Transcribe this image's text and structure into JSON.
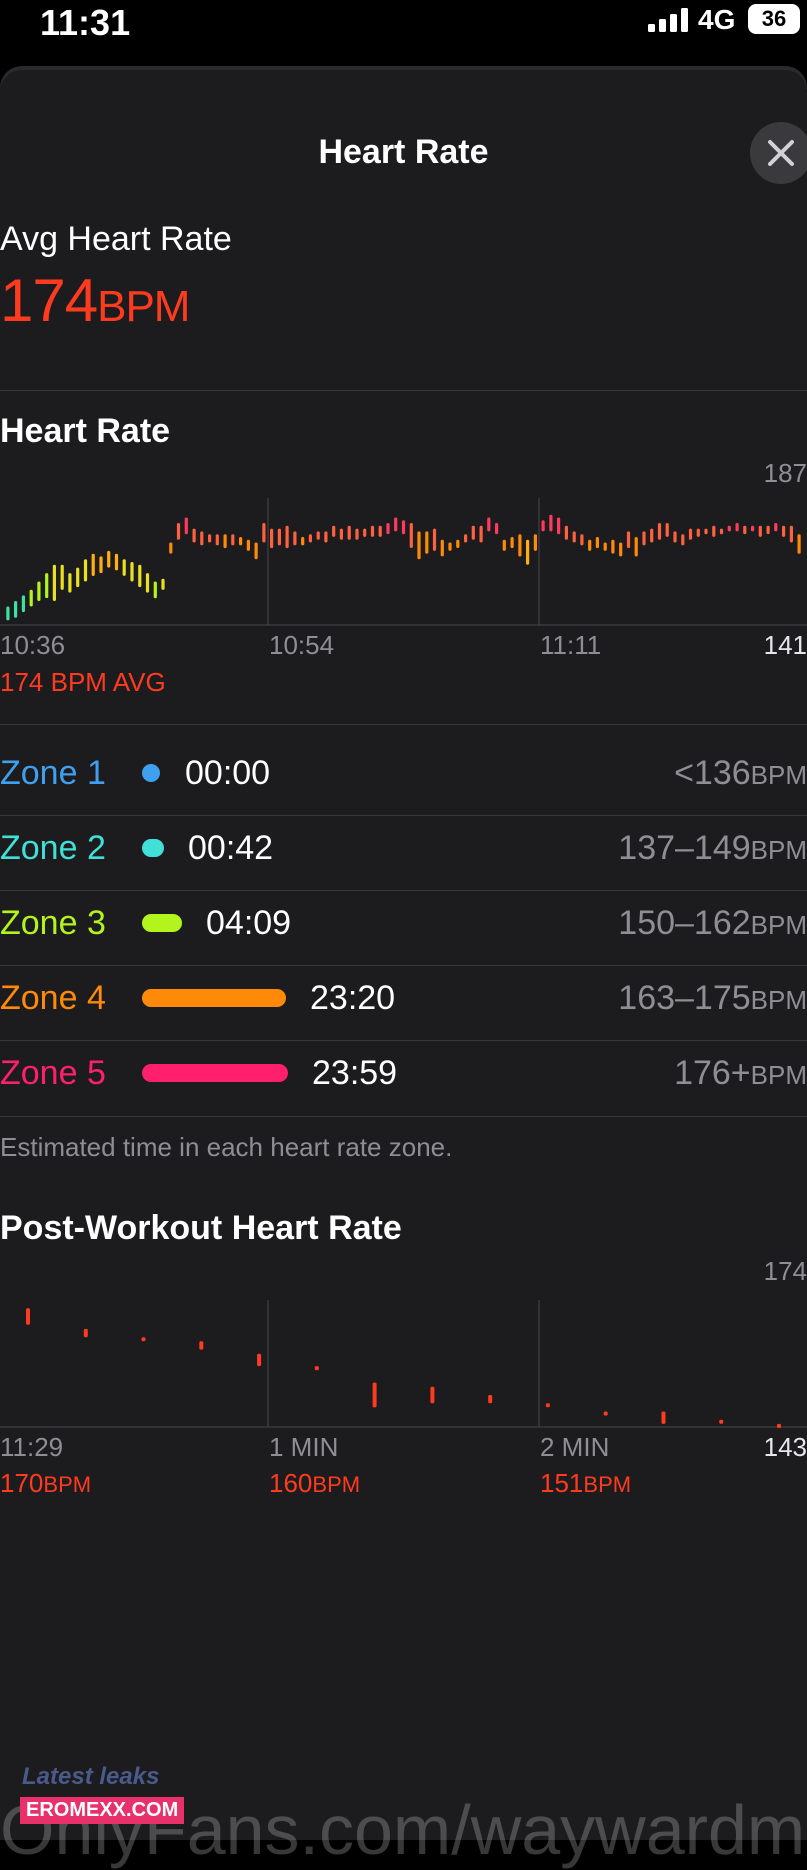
{
  "status_bar": {
    "time": "11:31",
    "network": "4G",
    "battery": "36"
  },
  "sheet": {
    "title": "Heart Rate"
  },
  "summary": {
    "label": "Avg Heart Rate",
    "value": "174",
    "unit": "BPM"
  },
  "heart_rate_chart": {
    "title": "Heart Rate",
    "y_max_label": "187",
    "y_min_label": "141",
    "x_labels": [
      "10:36",
      "10:54",
      "11:11"
    ],
    "avg_caption": "174 BPM AVG"
  },
  "zones": [
    {
      "name": "Zone 1",
      "time": "00:00",
      "range": "<136",
      "unit": "BPM",
      "color": "#3fa0f0"
    },
    {
      "name": "Zone 2",
      "time": "00:42",
      "range": "137–149",
      "unit": "BPM",
      "color": "#40e0d8"
    },
    {
      "name": "Zone 3",
      "time": "04:09",
      "range": "150–162",
      "unit": "BPM",
      "color": "#b2f41c"
    },
    {
      "name": "Zone 4",
      "time": "23:20",
      "range": "163–175",
      "unit": "BPM",
      "color": "#ff8a0a"
    },
    {
      "name": "Zone 5",
      "time": "23:59",
      "range": "176+",
      "unit": "BPM",
      "color": "#ff1f6d"
    }
  ],
  "zones_footnote": "Estimated time in each heart rate zone.",
  "post_workout": {
    "title": "Post-Workout Heart Rate",
    "y_max_label": "174",
    "y_min_label": "143",
    "marks": [
      {
        "time": "11:29",
        "value": "170",
        "unit": "BPM"
      },
      {
        "time": "1 MIN",
        "value": "160",
        "unit": "BPM"
      },
      {
        "time": "2 MIN",
        "value": "151",
        "unit": "BPM"
      }
    ]
  },
  "watermark": {
    "site_tag": "Latest leaks",
    "site_badge": "EROMEXX.COM",
    "overlay": "OnlyFans.com/waywardm"
  },
  "chart_data": [
    {
      "type": "bar",
      "title": "Heart Rate",
      "xlabel": "",
      "ylabel": "",
      "ylim": [
        141,
        187
      ],
      "x_ticks": [
        "10:36",
        "10:54",
        "11:11"
      ],
      "note": "",
      "series": [
        {
          "ranges": [
            [
              143,
              148
            ],
            [
              144,
              150
            ],
            [
              146,
              152
            ],
            [
              148,
              154
            ],
            [
              150,
              157
            ],
            [
              151,
              160
            ],
            [
              150,
              163
            ],
            [
              154,
              163
            ],
            [
              153,
              160
            ],
            [
              155,
              162
            ],
            [
              157,
              165
            ],
            [
              159,
              167
            ],
            [
              160,
              166
            ],
            [
              162,
              168
            ],
            [
              161,
              167
            ],
            [
              159,
              165
            ],
            [
              157,
              164
            ],
            [
              155,
              163
            ],
            [
              153,
              160
            ],
            [
              151,
              157
            ],
            [
              154,
              158
            ],
            [
              167,
              171
            ],
            [
              172,
              178
            ],
            [
              174,
              180
            ],
            [
              171,
              176
            ],
            [
              170,
              175
            ],
            [
              171,
              174
            ],
            [
              170,
              174
            ],
            [
              169,
              174
            ],
            [
              170,
              174
            ],
            [
              170,
              173
            ],
            [
              168,
              172
            ],
            [
              165,
              171
            ],
            [
              171,
              178
            ],
            [
              169,
              176
            ],
            [
              170,
              176
            ],
            [
              169,
              177
            ],
            [
              170,
              175
            ],
            [
              170,
              173
            ],
            [
              171,
              174
            ],
            [
              172,
              175
            ],
            [
              171,
              175
            ],
            [
              173,
              177
            ],
            [
              172,
              176
            ],
            [
              172,
              177
            ],
            [
              172,
              176
            ],
            [
              173,
              176
            ],
            [
              173,
              177
            ],
            [
              173,
              177
            ],
            [
              174,
              178
            ],
            [
              175,
              180
            ],
            [
              174,
              179
            ],
            [
              169,
              178
            ],
            [
              165,
              175
            ],
            [
              167,
              175
            ],
            [
              168,
              176
            ],
            [
              166,
              172
            ],
            [
              168,
              171
            ],
            [
              169,
              172
            ],
            [
              171,
              174
            ],
            [
              172,
              177
            ],
            [
              171,
              177
            ],
            [
              175,
              180
            ],
            [
              174,
              178
            ],
            [
              168,
              172
            ],
            [
              169,
              173
            ],
            [
              166,
              174
            ],
            [
              163,
              172
            ],
            [
              168,
              174
            ],
            [
              175,
              179
            ],
            [
              175,
              181
            ],
            [
              174,
              180
            ],
            [
              172,
              177
            ],
            [
              171,
              175
            ],
            [
              170,
              174
            ],
            [
              168,
              172
            ],
            [
              169,
              173
            ],
            [
              168,
              171
            ],
            [
              167,
              172
            ],
            [
              166,
              171
            ],
            [
              169,
              175
            ],
            [
              166,
              173
            ],
            [
              170,
              175
            ],
            [
              171,
              176
            ],
            [
              172,
              178
            ],
            [
              173,
              178
            ],
            [
              171,
              175
            ],
            [
              170,
              174
            ],
            [
              172,
              176
            ],
            [
              173,
              176
            ],
            [
              174,
              176
            ],
            [
              173,
              177
            ],
            [
              174,
              176
            ],
            [
              175,
              177
            ],
            [
              175,
              178
            ],
            [
              174,
              177
            ],
            [
              175,
              177
            ],
            [
              173,
              177
            ],
            [
              174,
              177
            ],
            [
              175,
              178
            ],
            [
              173,
              177
            ],
            [
              171,
              177
            ],
            [
              167,
              174
            ]
          ]
        }
      ]
    },
    {
      "type": "scatter",
      "title": "Post-Workout Heart Rate",
      "xlabel": "",
      "ylabel": "",
      "ylim": [
        143,
        174
      ],
      "x_ticks": [
        "11:29",
        "1 MIN",
        "2 MIN"
      ],
      "series": [
        {
          "ranges": [
            [
              168,
              172
            ],
            [
              165,
              167
            ],
            [
              164,
              165
            ],
            [
              162,
              164
            ],
            [
              158,
              161
            ],
            [
              157,
              158
            ],
            [
              148,
              154
            ],
            [
              149,
              153
            ],
            [
              149,
              151
            ],
            [
              148,
              149
            ],
            [
              146,
              147
            ],
            [
              144,
              147
            ],
            [
              144,
              145
            ],
            [
              143,
              144
            ]
          ]
        }
      ]
    }
  ]
}
